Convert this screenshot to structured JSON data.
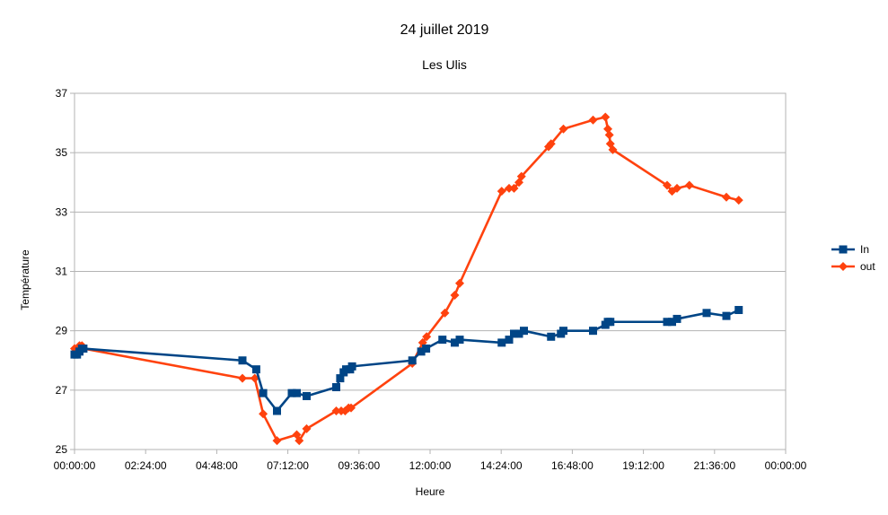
{
  "chart_data": {
    "type": "line",
    "title": "24 juillet 2019",
    "subtitle": "Les Ulis",
    "xlabel": "Heure",
    "ylabel": "Température",
    "xlim": [
      0,
      1440
    ],
    "ylim": [
      25,
      37
    ],
    "x_ticks": [
      0,
      144,
      288,
      432,
      576,
      720,
      864,
      1008,
      1152,
      1296,
      1440
    ],
    "x_tick_labels": [
      "00:00:00",
      "02:24:00",
      "04:48:00",
      "07:12:00",
      "09:36:00",
      "12:00:00",
      "14:24:00",
      "16:48:00",
      "19:12:00",
      "21:36:00",
      "00:00:00"
    ],
    "y_ticks": [
      25,
      27,
      29,
      31,
      33,
      35,
      37
    ],
    "y_tick_labels": [
      "25",
      "27",
      "29",
      "31",
      "33",
      "35",
      "37"
    ],
    "grid": true,
    "legend_position": "right",
    "series": [
      {
        "name": "In",
        "color": "#004586",
        "marker": "square",
        "x": [
          0,
          5,
          10,
          15,
          18,
          340,
          368,
          382,
          410,
          440,
          450,
          470,
          530,
          538,
          545,
          550,
          558,
          562,
          684,
          702,
          712,
          745,
          770,
          780,
          865,
          880,
          890,
          900,
          910,
          965,
          985,
          990,
          1050,
          1075,
          1080,
          1085,
          1200,
          1210,
          1220,
          1280,
          1320,
          1345
        ],
        "y": [
          28.2,
          28.2,
          28.3,
          28.4,
          28.4,
          28.0,
          27.7,
          26.9,
          26.3,
          26.9,
          26.9,
          26.8,
          27.1,
          27.4,
          27.6,
          27.7,
          27.7,
          27.8,
          28.0,
          28.3,
          28.4,
          28.7,
          28.6,
          28.7,
          28.6,
          28.7,
          28.9,
          28.9,
          29.0,
          28.8,
          28.9,
          29.0,
          29.0,
          29.2,
          29.3,
          29.3,
          29.3,
          29.3,
          29.4,
          29.6,
          29.5,
          29.7
        ]
      },
      {
        "name": "out",
        "color": "#ff420e",
        "marker": "diamond",
        "x": [
          0,
          5,
          10,
          15,
          18,
          340,
          365,
          382,
          410,
          450,
          455,
          470,
          530,
          540,
          548,
          555,
          560,
          684,
          705,
          713,
          750,
          770,
          780,
          865,
          880,
          890,
          900,
          905,
          960,
          965,
          990,
          1050,
          1075,
          1080,
          1083,
          1085,
          1090,
          1200,
          1210,
          1220,
          1245,
          1320,
          1345
        ],
        "y": [
          28.4,
          28.3,
          28.5,
          28.5,
          28.4,
          27.4,
          27.4,
          26.2,
          25.3,
          25.5,
          25.3,
          25.7,
          26.3,
          26.3,
          26.3,
          26.4,
          26.4,
          27.9,
          28.6,
          28.8,
          29.6,
          30.2,
          30.6,
          33.7,
          33.8,
          33.8,
          34.0,
          34.2,
          35.2,
          35.3,
          35.8,
          36.1,
          36.2,
          35.8,
          35.6,
          35.3,
          35.1,
          33.9,
          33.7,
          33.8,
          33.9,
          33.5,
          33.4
        ]
      }
    ]
  }
}
